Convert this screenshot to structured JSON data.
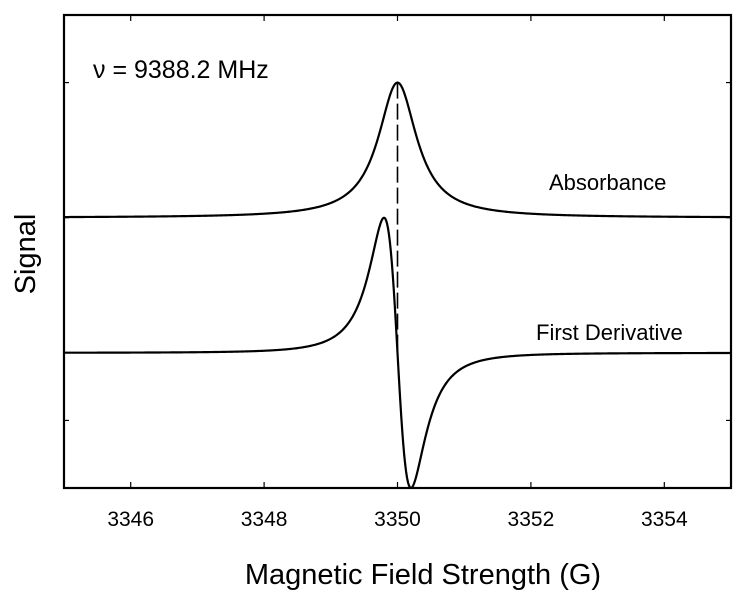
{
  "chart_data": {
    "type": "line",
    "title": "",
    "xlabel": "Magnetic Field Strength (G)",
    "ylabel": "Signal",
    "xlim": [
      3345,
      3355
    ],
    "ylim": [
      -1.0,
      2.5
    ],
    "x_ticks": [
      3346,
      3348,
      3350,
      3352,
      3354
    ],
    "x_tick_labels": [
      "3346",
      "3348",
      "3350",
      "3352",
      "3354"
    ],
    "y_tick_labels_shown": false,
    "grid": false,
    "legend": "none",
    "annotations": [
      {
        "text": "ν = 9388.2 MHz",
        "role": "frequency"
      },
      {
        "text": "Absorbance",
        "role": "series-label",
        "series": 0
      },
      {
        "text": "First Derivative",
        "role": "series-label",
        "series": 1
      }
    ],
    "resonance_marker": {
      "x": 3350.0,
      "style": "dashed"
    },
    "series": [
      {
        "name": "Absorbance",
        "kind": "lorentzian-absorption",
        "center": 3350.0,
        "half_width": 0.35,
        "baseline": 1.0,
        "amplitude": 1.0,
        "points": [
          [
            3345,
            1.0
          ],
          [
            3348,
            1.03
          ],
          [
            3349,
            1.11
          ],
          [
            3349.5,
            1.33
          ],
          [
            3349.8,
            1.75
          ],
          [
            3350.0,
            2.0
          ],
          [
            3350.2,
            1.75
          ],
          [
            3350.5,
            1.33
          ],
          [
            3351,
            1.11
          ],
          [
            3352,
            1.03
          ],
          [
            3355,
            1.0
          ]
        ]
      },
      {
        "name": "First Derivative",
        "kind": "lorentzian-derivative",
        "center": 3350.0,
        "half_width": 0.35,
        "baseline": 0.0,
        "amplitude": 1.0,
        "points": [
          [
            3345,
            0.0
          ],
          [
            3348,
            0.05
          ],
          [
            3349,
            0.23
          ],
          [
            3349.5,
            0.66
          ],
          [
            3349.7,
            0.99
          ],
          [
            3350.0,
            0.0
          ],
          [
            3350.3,
            -1.0
          ],
          [
            3350.5,
            -0.66
          ],
          [
            3351,
            -0.23
          ],
          [
            3352,
            -0.05
          ],
          [
            3355,
            0.0
          ]
        ]
      }
    ]
  },
  "colors": {
    "line": "#000000",
    "background": "#ffffff"
  }
}
